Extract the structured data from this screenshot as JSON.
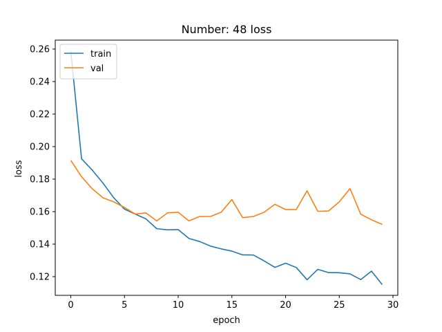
{
  "chart_data": {
    "type": "line",
    "title": "Number: 48 loss",
    "xlabel": "epoch",
    "ylabel": "loss",
    "xlim": [
      -1.45,
      30.45
    ],
    "ylim": [
      0.1085,
      0.2655
    ],
    "xticks": [
      0,
      5,
      10,
      15,
      20,
      25,
      30
    ],
    "xtick_labels": [
      "0",
      "5",
      "10",
      "15",
      "20",
      "25",
      "30"
    ],
    "yticks": [
      0.12,
      0.14,
      0.16,
      0.18,
      0.2,
      0.22,
      0.24,
      0.26
    ],
    "ytick_labels": [
      "0.12",
      "0.14",
      "0.16",
      "0.18",
      "0.20",
      "0.22",
      "0.24",
      "0.26"
    ],
    "grid": false,
    "legend": "top-left",
    "x": [
      0,
      1,
      2,
      3,
      4,
      5,
      6,
      7,
      8,
      9,
      10,
      11,
      12,
      13,
      14,
      15,
      16,
      17,
      18,
      19,
      20,
      21,
      22,
      23,
      24,
      25,
      26,
      27,
      28,
      29
    ],
    "series": [
      {
        "name": "train",
        "color": "#1f77b4",
        "values": [
          0.2585,
          0.1925,
          0.1855,
          0.1775,
          0.1685,
          0.1615,
          0.1585,
          0.1555,
          0.1495,
          0.1488,
          0.1489,
          0.1435,
          0.1416,
          0.1388,
          0.1371,
          0.1357,
          0.1334,
          0.1333,
          0.1297,
          0.1257,
          0.1283,
          0.1256,
          0.1181,
          0.1245,
          0.1225,
          0.1224,
          0.1217,
          0.1182,
          0.1234,
          0.1151
        ]
      },
      {
        "name": "val",
        "color": "#ff7f0e",
        "values": [
          0.1915,
          0.1815,
          0.174,
          0.1685,
          0.166,
          0.1625,
          0.1585,
          0.1592,
          0.1543,
          0.1592,
          0.1596,
          0.1543,
          0.157,
          0.157,
          0.1596,
          0.1674,
          0.1563,
          0.157,
          0.1596,
          0.1645,
          0.1613,
          0.1613,
          0.1728,
          0.1602,
          0.1604,
          0.166,
          0.1742,
          0.1584,
          0.155,
          0.1521
        ]
      }
    ]
  }
}
